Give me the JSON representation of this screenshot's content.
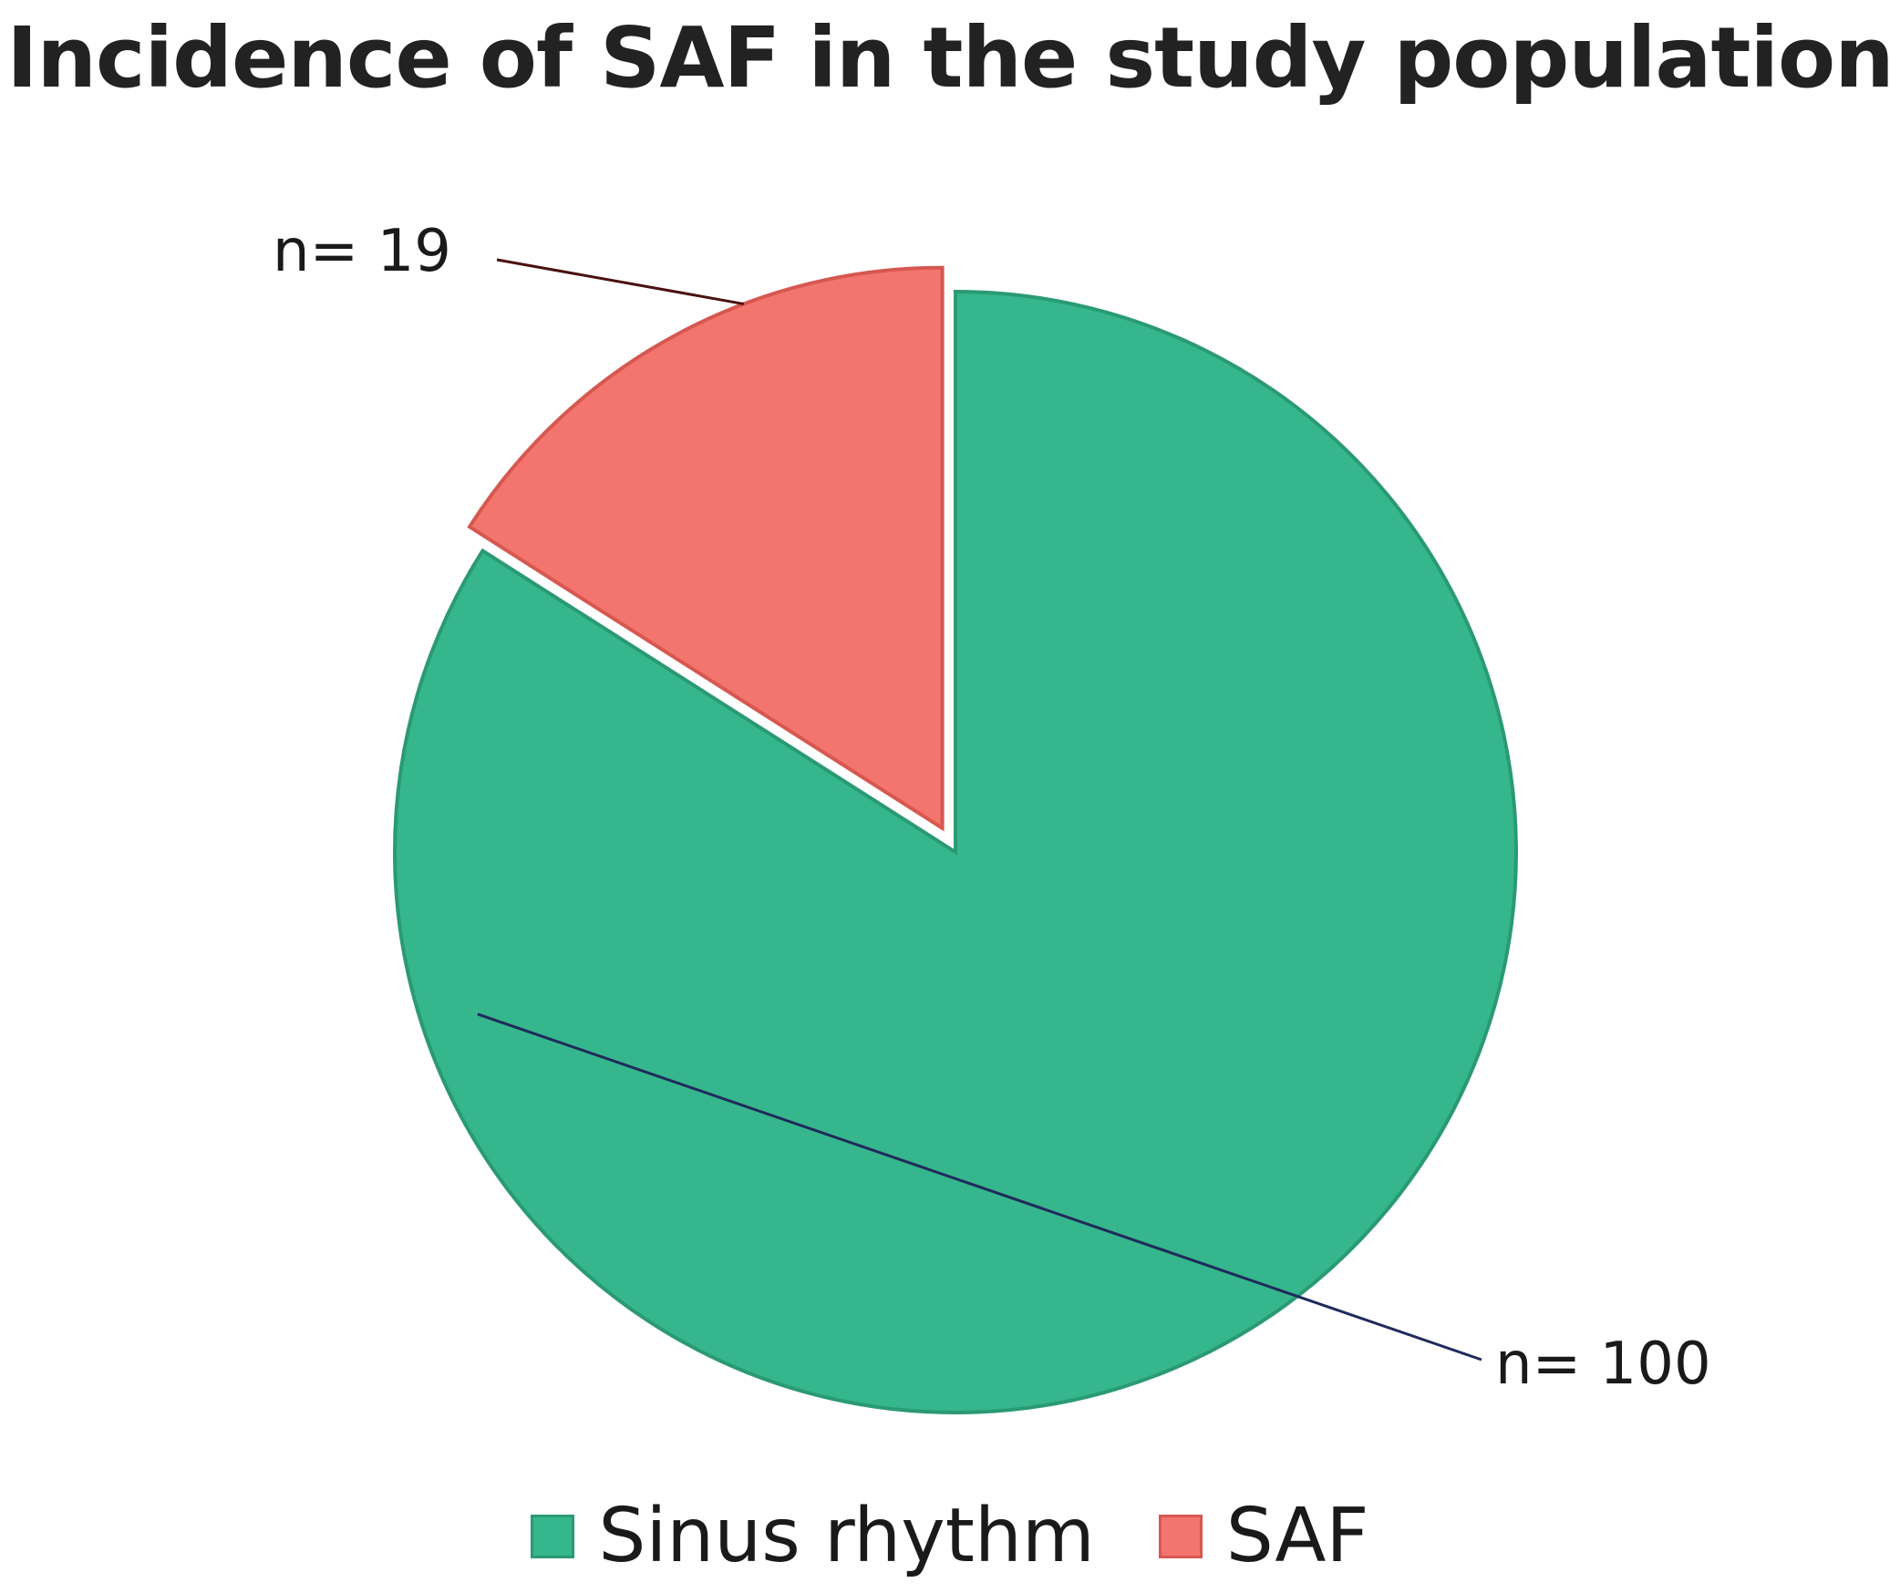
{
  "chart_data": {
    "type": "pie",
    "title": "Incidence of SAF in the study population",
    "slices": [
      {
        "name": "Sinus rhythm",
        "value": 100,
        "label": "n= 100",
        "color": "#36b68c",
        "edge": "#2a9a73",
        "exploded": false
      },
      {
        "name": "SAF",
        "value": 19,
        "label": "n= 19",
        "color": "#f4756e",
        "edge": "#d65850",
        "exploded": true
      }
    ],
    "legend_position": "bottom",
    "leader_colors": {
      "Sinus rhythm": "#1f2a5c",
      "SAF": "#4a1010"
    }
  }
}
